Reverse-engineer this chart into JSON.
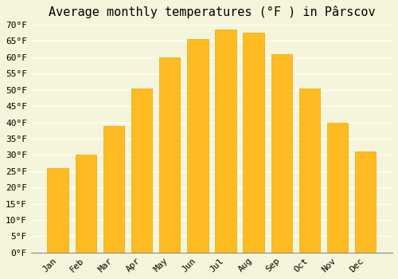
{
  "title": "Average monthly temperatures (°F ) in Pârscov",
  "months": [
    "Jan",
    "Feb",
    "Mar",
    "Apr",
    "May",
    "Jun",
    "Jul",
    "Aug",
    "Sep",
    "Oct",
    "Nov",
    "Dec"
  ],
  "values": [
    26,
    30,
    39,
    50.5,
    60,
    65.5,
    68.5,
    67.5,
    61,
    50.5,
    40,
    31
  ],
  "bar_color": "#FFBB22",
  "bar_edge_color": "#E8A800",
  "background_color": "#F5F5DC",
  "grid_color": "#FFFFFF",
  "ylim": [
    0,
    70
  ],
  "yticks": [
    0,
    5,
    10,
    15,
    20,
    25,
    30,
    35,
    40,
    45,
    50,
    55,
    60,
    65,
    70
  ],
  "ylabel_suffix": "°F",
  "title_fontsize": 11,
  "tick_fontsize": 8,
  "font_family": "monospace"
}
